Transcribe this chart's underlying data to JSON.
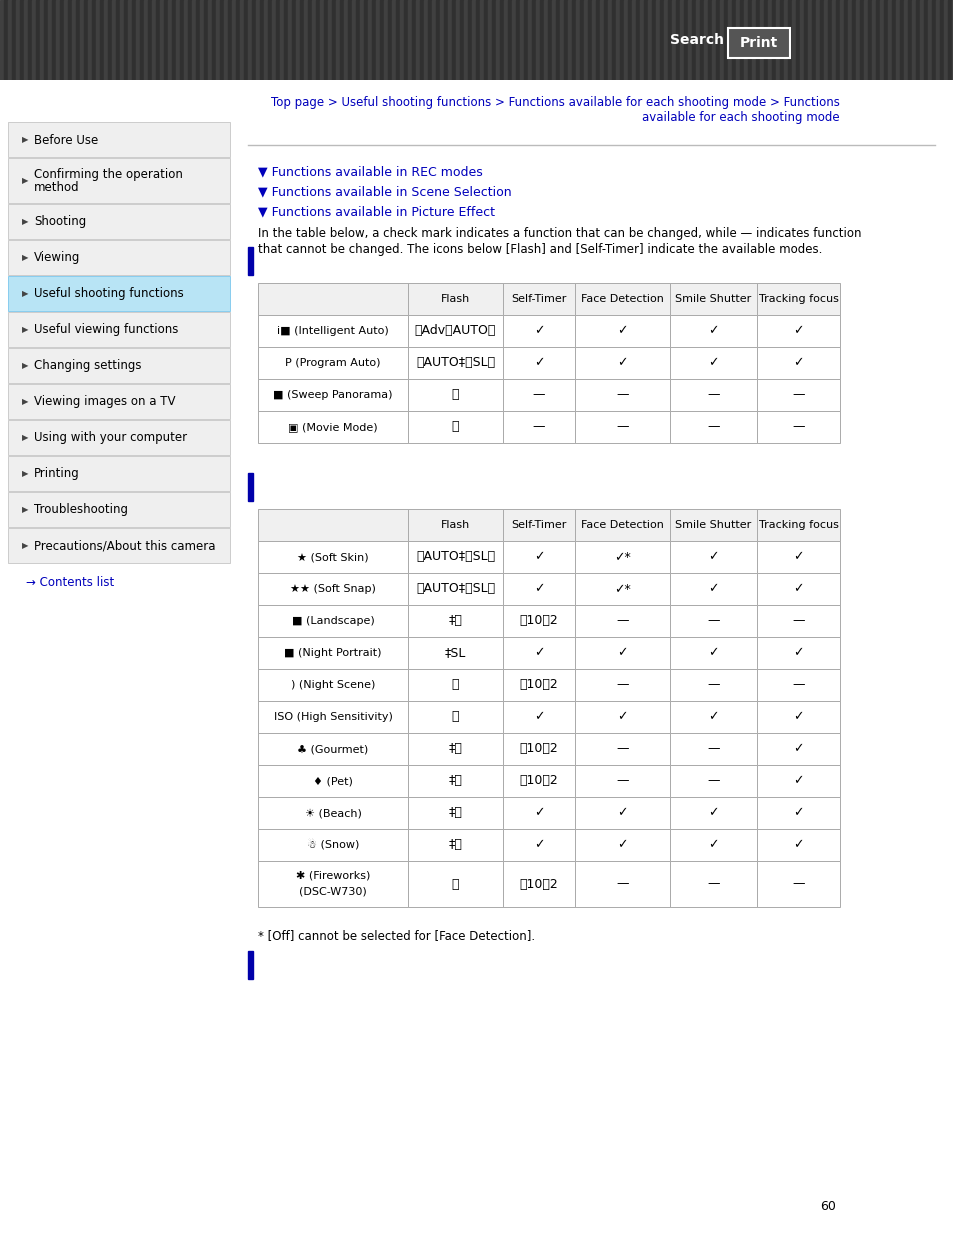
{
  "bg_color": "#ffffff",
  "header_stripe1": "#404040",
  "header_stripe2": "#303030",
  "sidebar_bg": "#efefef",
  "sidebar_active_bg": "#b8e4f5",
  "sidebar_border": "#cccccc",
  "nav_color": "#0000bb",
  "link_color": "#0000bb",
  "blue_bar_color": "#0000aa",
  "table_header_bg": "#f0f0f0",
  "table_border": "#aaaaaa",
  "sidebar_items": [
    "Before Use",
    "Confirming the operation\nmethod",
    "Shooting",
    "Viewing",
    "Useful shooting functions",
    "Useful viewing functions",
    "Changing settings",
    "Viewing images on a TV",
    "Using with your computer",
    "Printing",
    "Troubleshooting",
    "Precautions/About this camera"
  ],
  "sidebar_active_index": 4,
  "nav_line1": "Top page > Useful shooting functions > Functions available for each shooting mode > Functions",
  "nav_line2": "available for each shooting mode",
  "section_links": [
    "▼ Functions available in REC modes",
    "▼ Functions available in Scene Selection",
    "▼ Functions available in Picture Effect"
  ],
  "intro_line1": "In the table below, a check mark indicates a function that can be changed, while — indicates function",
  "intro_line2": "that cannot be changed. The icons below [Flash] and [Self-Timer] indicate the available modes.",
  "col_headers": [
    "",
    "Flash",
    "Self-Timer",
    "Face Detection",
    "Smile Shutter",
    "Tracking focus"
  ],
  "table1_rows": [
    [
      "i■ (Intelligent Auto)",
      "ⒸAdvⒸAUTOⓈ",
      "✓",
      "✓",
      "✓",
      "✓"
    ],
    [
      "P (Program Auto)",
      "ⒸAUTO‡ⒸSLⓈ",
      "✓",
      "✓",
      "✓",
      "✓"
    ],
    [
      "■ (Sweep Panorama)",
      "Ⓢ",
      "—",
      "—",
      "—",
      "—"
    ],
    [
      "▣ (Movie Mode)",
      "Ⓢ",
      "—",
      "—",
      "—",
      "—"
    ]
  ],
  "table2_rows": [
    [
      "★ (Soft Skin)",
      "ⒸAUTO‡ⒸSLⓈ",
      "✓",
      "✓*",
      "✓",
      "✓"
    ],
    [
      "★★ (Soft Snap)",
      "ⒸAUTO‡ⒸSLⓈ",
      "✓",
      "✓*",
      "✓",
      "✓"
    ],
    [
      "■ (Landscape)",
      "‡Ⓢ",
      "⌒10⌒2",
      "—",
      "—",
      "—"
    ],
    [
      "■ (Night Portrait)",
      "‡SL",
      "✓",
      "✓",
      "✓",
      "✓"
    ],
    [
      ") (Night Scene)",
      "Ⓢ",
      "⌒10⌒2",
      "—",
      "—",
      "—"
    ],
    [
      "ISO (High Sensitivity)",
      "Ⓢ",
      "✓",
      "✓",
      "✓",
      "✓"
    ],
    [
      "♣ (Gourmet)",
      "‡Ⓢ",
      "⌒10⌒2",
      "—",
      "—",
      "✓"
    ],
    [
      "♦ (Pet)",
      "‡Ⓢ",
      "⌒10⌒2",
      "—",
      "—",
      "✓"
    ],
    [
      "☀ (Beach)",
      "‡Ⓢ",
      "✓",
      "✓",
      "✓",
      "✓"
    ],
    [
      "☃ (Snow)",
      "‡Ⓢ",
      "✓",
      "✓",
      "✓",
      "✓"
    ],
    [
      "✱ (Fireworks)\n(DSC-W730)",
      "Ⓢ",
      "⌒10⌒2",
      "—",
      "—",
      "—"
    ]
  ],
  "footnote": "* [Off] cannot be selected for [Face Detection].",
  "page_number": "60",
  "contents_link": "→ Contents list"
}
